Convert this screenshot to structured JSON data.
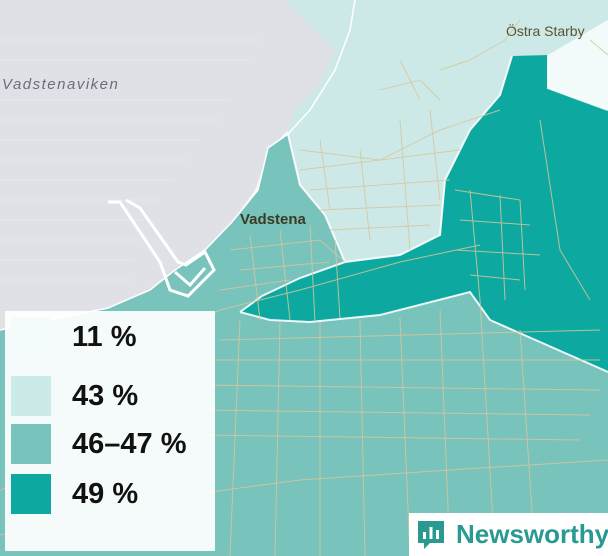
{
  "map": {
    "labels": {
      "bay": "Vadstenaviken",
      "town": "Vadstena",
      "village": "Östra Starby"
    },
    "colors": {
      "water": "#dfe1e6",
      "land": "#f5f8f7",
      "street": "#d6c79b",
      "shoreline": "#ffffff",
      "class_11": "#f2fbfa",
      "class_43": "#cde9e7",
      "class_46_47": "#78c3bb",
      "class_49": "#0da8a0"
    }
  },
  "legend": {
    "items": [
      {
        "label": "11 %",
        "color": "#f4fbfb"
      },
      {
        "label": "43 %",
        "color": "#cceae7"
      },
      {
        "label": "46–47 %",
        "color": "#78c4bc"
      },
      {
        "label": "49 %",
        "color": "#0da9a0"
      }
    ]
  },
  "branding": {
    "name": "Newsworthy",
    "icon": "newsworthy-bar-chart-icon",
    "color": "#2a9a91"
  }
}
